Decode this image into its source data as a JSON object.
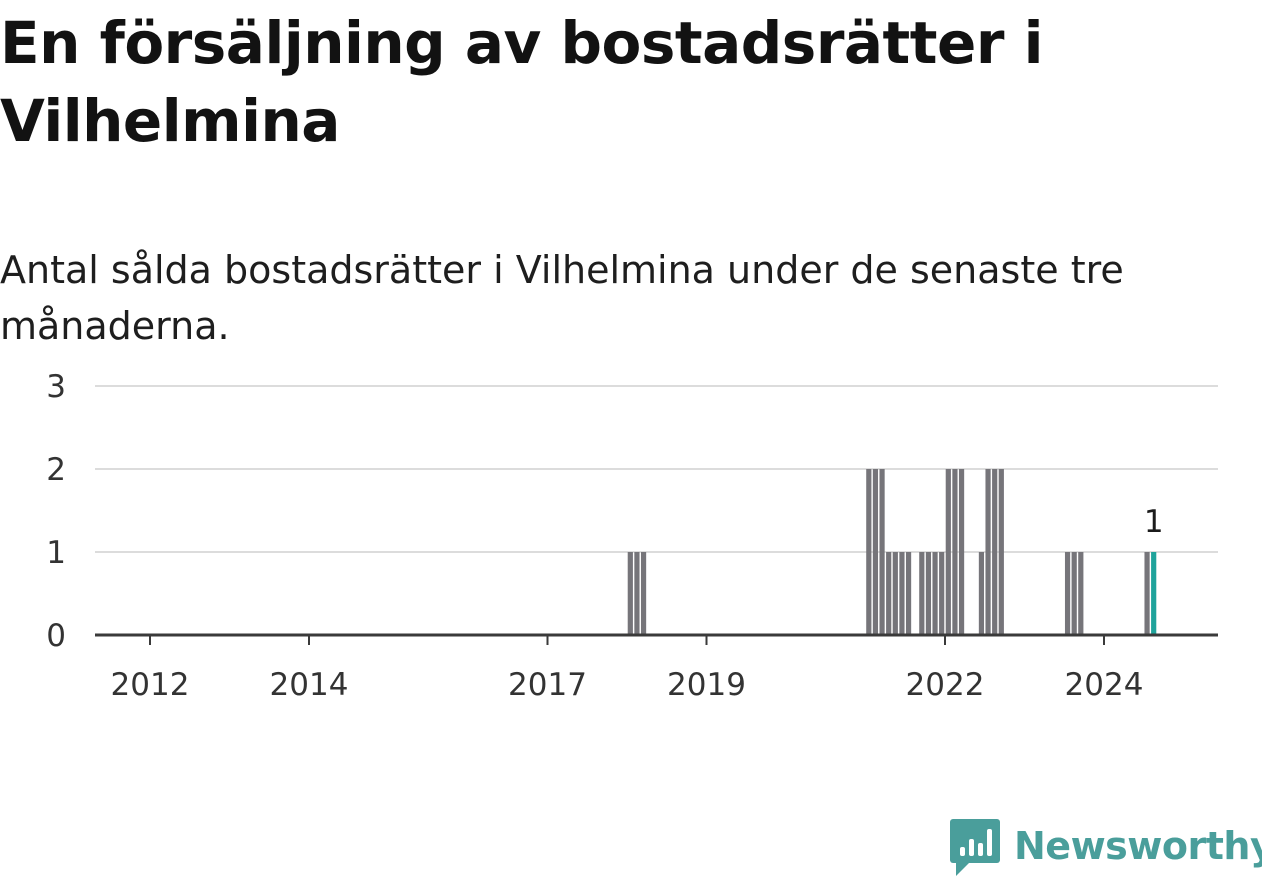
{
  "title": "En försäljning av bostadsrätter i Vilhelmina",
  "subtitle": "Antal sålda bostadsrätter i Vilhelmina under de senaste tre månaderna.",
  "brand": {
    "name": "Newsworthy",
    "icon": "newsworthy-logo-icon",
    "color": "#4a9e9b"
  },
  "chart_data": {
    "type": "bar",
    "ylim": [
      0,
      3
    ],
    "y_ticks": [
      "0",
      "1",
      "2",
      "3"
    ],
    "x_ticks": [
      "2012",
      "2014",
      "2017",
      "2019",
      "2022",
      "2024"
    ],
    "grid": true,
    "bar_color": "#76757a",
    "highlight_color": "#1fa39b",
    "highlight_label": "1",
    "bars": [
      {
        "period": "2018-01",
        "value": 1
      },
      {
        "period": "2018-02",
        "value": 1
      },
      {
        "period": "2018-03",
        "value": 1
      },
      {
        "period": "2021-01",
        "value": 2
      },
      {
        "period": "2021-02",
        "value": 2
      },
      {
        "period": "2021-03",
        "value": 2
      },
      {
        "period": "2021-04",
        "value": 1
      },
      {
        "period": "2021-05",
        "value": 1
      },
      {
        "period": "2021-06",
        "value": 1
      },
      {
        "period": "2021-07",
        "value": 1
      },
      {
        "period": "2021-09",
        "value": 1
      },
      {
        "period": "2021-10",
        "value": 1
      },
      {
        "period": "2021-11",
        "value": 1
      },
      {
        "period": "2021-12",
        "value": 1
      },
      {
        "period": "2022-01",
        "value": 2
      },
      {
        "period": "2022-02",
        "value": 2
      },
      {
        "period": "2022-03",
        "value": 2
      },
      {
        "period": "2022-06",
        "value": 1
      },
      {
        "period": "2022-07",
        "value": 2
      },
      {
        "period": "2022-08",
        "value": 2
      },
      {
        "period": "2022-09",
        "value": 2
      },
      {
        "period": "2023-07",
        "value": 1
      },
      {
        "period": "2023-08",
        "value": 1
      },
      {
        "period": "2023-09",
        "value": 1
      },
      {
        "period": "2024-07",
        "value": 1
      },
      {
        "period": "2024-08",
        "value": 1,
        "highlight": true
      }
    ]
  }
}
